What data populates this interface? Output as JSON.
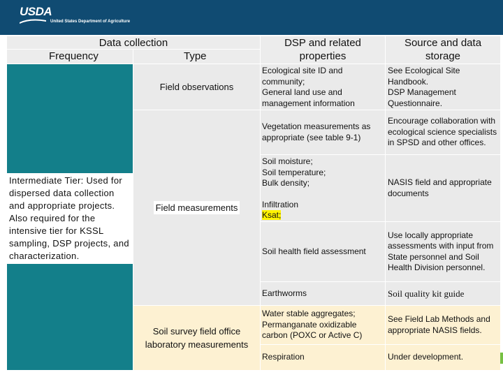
{
  "header": {
    "logo_text": "USDA",
    "department": "United States Department of Agriculture"
  },
  "columns": {
    "data_collection": "Data collection",
    "frequency": "Frequency",
    "type": "Type",
    "dsp": "DSP and related properties",
    "source": "Source and data storage"
  },
  "tier_label": "Intermediate Tier: Used for dispersed data collection and appropriate projects. Also required for the intensive tier for KSSL sampling, DSP projects, and characterization.",
  "types": {
    "field_observations": "Field observations",
    "field_measurements": "Field measurements",
    "lab_measurements": "Soil survey field office laboratory measurements"
  },
  "rows": [
    {
      "dsp_lines": [
        "Ecological site ID and community;",
        "General land use and management information"
      ],
      "source_lines": [
        "See Ecological Site Handbook.",
        "DSP Management Questionnaire."
      ]
    },
    {
      "dsp_lines": [
        "Vegetation measurements as appropriate (see table 9-1)"
      ],
      "source_lines": [
        "Encourage collaboration with ecological science specialists in SPSD and other offices."
      ]
    },
    {
      "dsp_lines": [
        "Soil moisture;",
        "Soil temperature;",
        "Bulk density;"
      ],
      "infiltration": "Infiltration",
      "ksat": "Ksat;",
      "source_lines": [
        "NASIS field and appropriate documents"
      ]
    },
    {
      "dsp_lines": [
        "Soil health field assessment"
      ],
      "source_lines": [
        "Use locally appropriate assessments with input from State personnel and Soil Health Division personnel."
      ]
    },
    {
      "dsp_lines": [
        "Earthworms"
      ],
      "source_lines": [
        "Soil quality kit guide"
      ]
    },
    {
      "dsp_lines": [
        "Water stable aggregates;",
        "Permanganate oxidizable carbon (POXC or Active C)"
      ],
      "source_lines": [
        "See Field Lab Methods and appropriate NASIS fields."
      ]
    },
    {
      "dsp_lines": [
        "Respiration"
      ],
      "source_lines": [
        "Under development."
      ]
    }
  ],
  "colors": {
    "header_bar": "#104b72",
    "tier_teal": "#137f8a",
    "lab_yellow": "#fdf1d2",
    "highlight": "#fff200"
  }
}
